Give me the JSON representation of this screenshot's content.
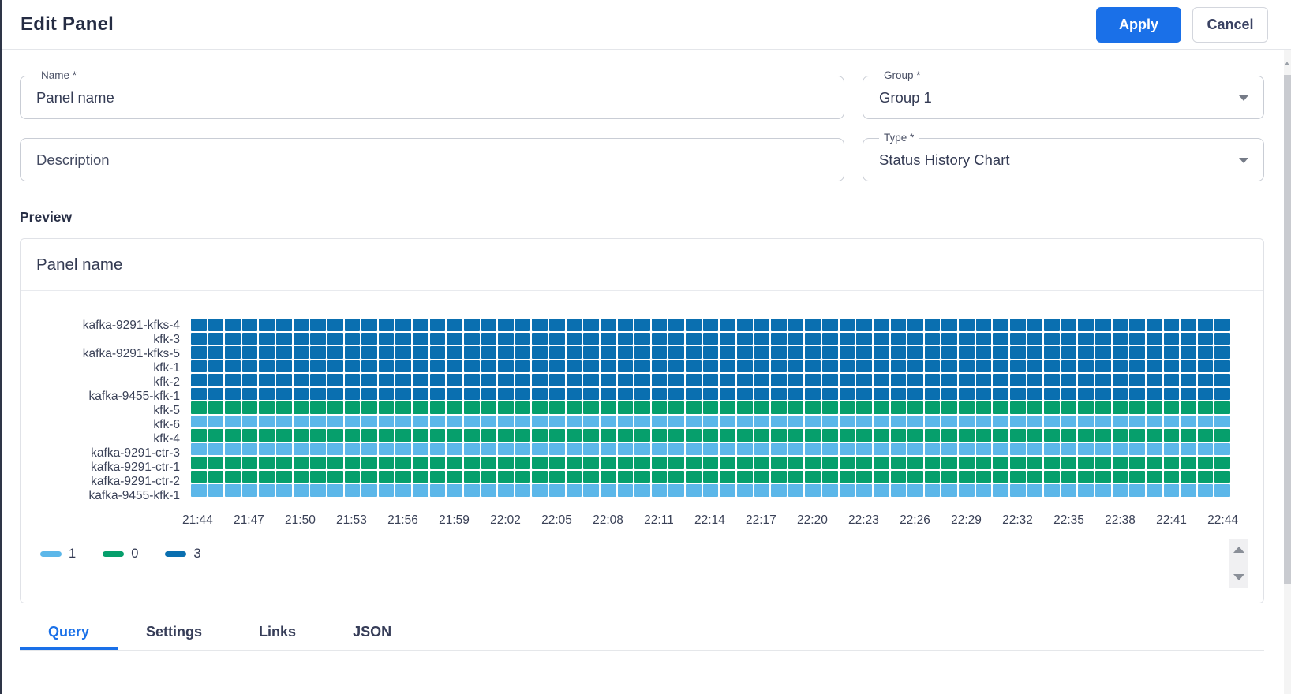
{
  "header": {
    "title": "Edit Panel",
    "apply_label": "Apply",
    "cancel_label": "Cancel"
  },
  "form": {
    "name": {
      "label": "Name *",
      "value": "Panel name"
    },
    "description": {
      "placeholder": "Description"
    },
    "group": {
      "label": "Group *",
      "value": "Group 1"
    },
    "type": {
      "label": "Type *",
      "value": "Status History Chart"
    }
  },
  "preview": {
    "heading": "Preview",
    "panel_title": "Panel name"
  },
  "chart_data": {
    "type": "heatmap",
    "subtype": "status-history",
    "columns": 61,
    "x_start": "21:44",
    "x_end": "22:44",
    "x_step_minutes": 1,
    "x_ticks": [
      "21:44",
      "21:47",
      "21:50",
      "21:53",
      "21:56",
      "21:59",
      "22:02",
      "22:05",
      "22:08",
      "22:11",
      "22:14",
      "22:17",
      "22:20",
      "22:23",
      "22:26",
      "22:29",
      "22:32",
      "22:35",
      "22:38",
      "22:41",
      "22:44"
    ],
    "rows": [
      {
        "label": "kafka-9291-kfks-4",
        "value": 3
      },
      {
        "label": "kfk-3",
        "value": 3
      },
      {
        "label": "kafka-9291-kfks-5",
        "value": 3
      },
      {
        "label": "kfk-1",
        "value": 3
      },
      {
        "label": "kfk-2",
        "value": 3
      },
      {
        "label": "kafka-9455-kfk-1",
        "value": 3
      },
      {
        "label": "kfk-5",
        "value": 0
      },
      {
        "label": "kfk-6",
        "value": 1
      },
      {
        "label": "kfk-4",
        "value": 0
      },
      {
        "label": "kafka-9291-ctr-3",
        "value": 1
      },
      {
        "label": "kafka-9291-ctr-1",
        "value": 0
      },
      {
        "label": "kafka-9291-ctr-2",
        "value": 0
      },
      {
        "label": "kafka-9455-kfk-1",
        "value": 1
      }
    ],
    "legend": [
      {
        "label": "1",
        "color": "#5cb7e9"
      },
      {
        "label": "0",
        "color": "#069f6c"
      },
      {
        "label": "3",
        "color": "#0a6fb0"
      }
    ],
    "value_colors": {
      "1": "#5cb7e9",
      "0": "#069f6c",
      "3": "#0a6fb0"
    },
    "legend_position": "bottom-left",
    "grid": "off"
  },
  "colors": {
    "accent_blue": "#1a70e8",
    "dark_blue_cell": "#0a6fb0",
    "green_cell": "#069f6c",
    "light_blue_cell": "#5cb7e9"
  },
  "tabs": [
    {
      "label": "Query",
      "active": true
    },
    {
      "label": "Settings",
      "active": false
    },
    {
      "label": "Links",
      "active": false
    },
    {
      "label": "JSON",
      "active": false
    }
  ]
}
